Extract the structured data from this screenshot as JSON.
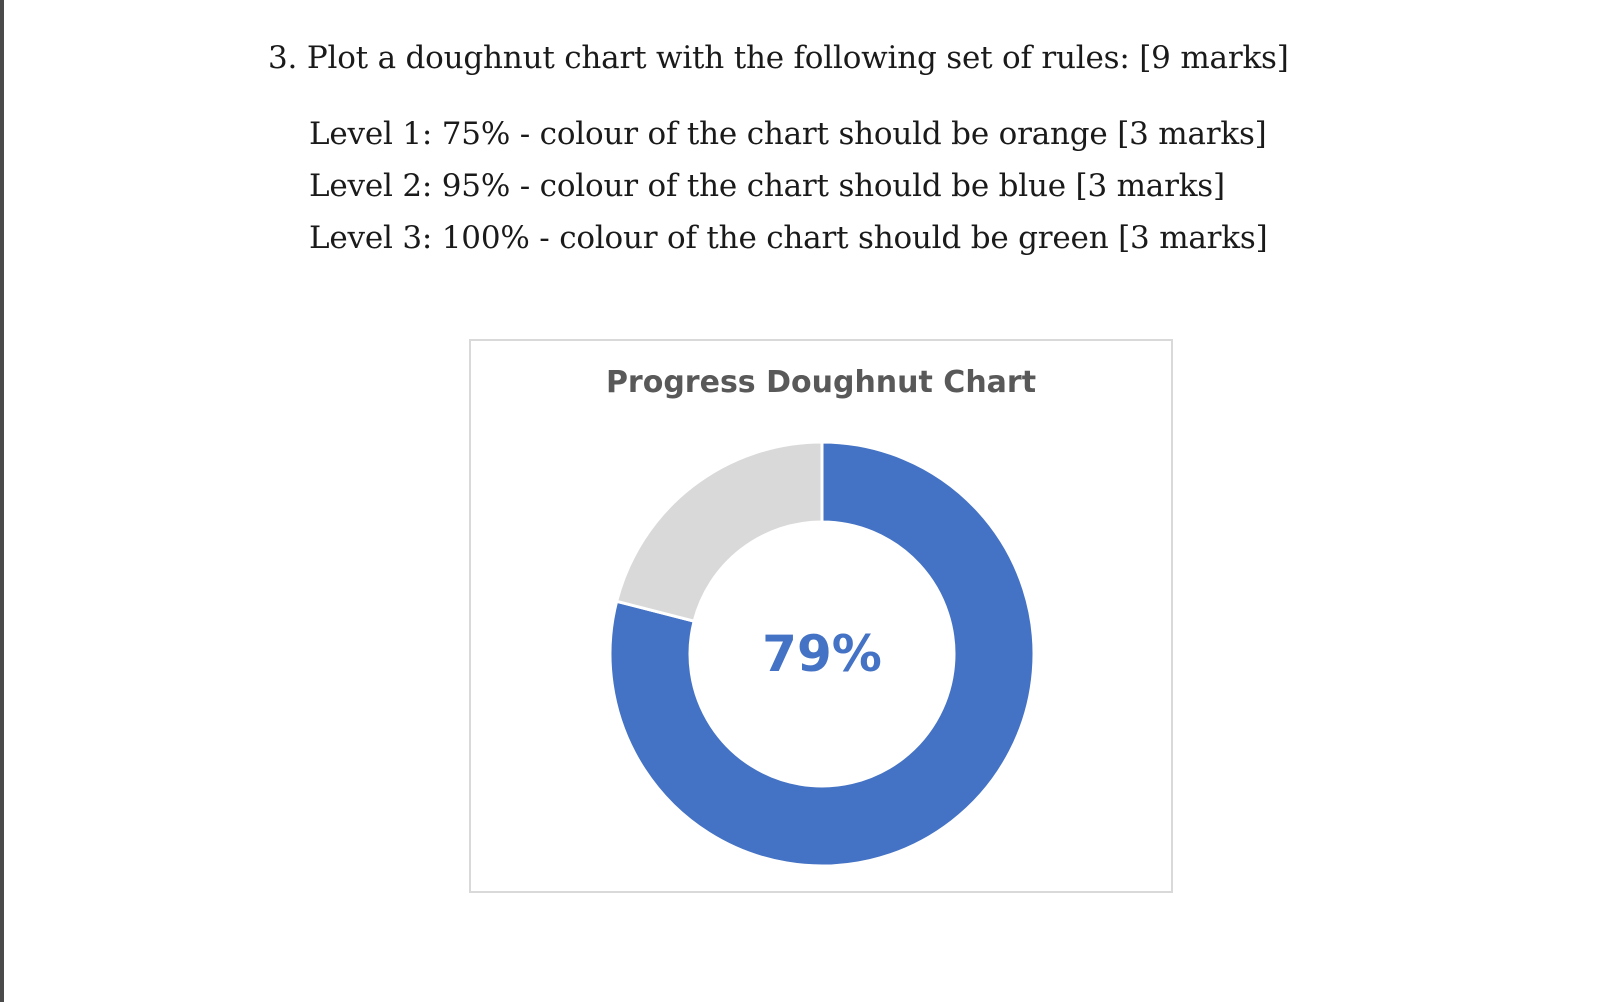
{
  "question": {
    "text": "3. Plot a doughnut chart with the following set of rules: [9 marks]"
  },
  "rules": [
    "Level 1: 75% - colour of the chart should be orange [3 marks]",
    "Level 2: 95% - colour of the chart should be blue [3 marks]",
    "Level 3: 100% - colour of the chart should be green [3 marks]"
  ],
  "chart_data": {
    "type": "pie",
    "title": "Progress Doughnut Chart",
    "center_label": "79%",
    "slices": [
      {
        "value": 79,
        "color": "#4472C4"
      },
      {
        "value": 21,
        "color": "#D9D9D9"
      }
    ],
    "legend": false
  },
  "colors": {
    "progress": "#4472C4",
    "remainder": "#D9D9D9",
    "title_text": "#595959",
    "border": "#D9D9D9"
  }
}
